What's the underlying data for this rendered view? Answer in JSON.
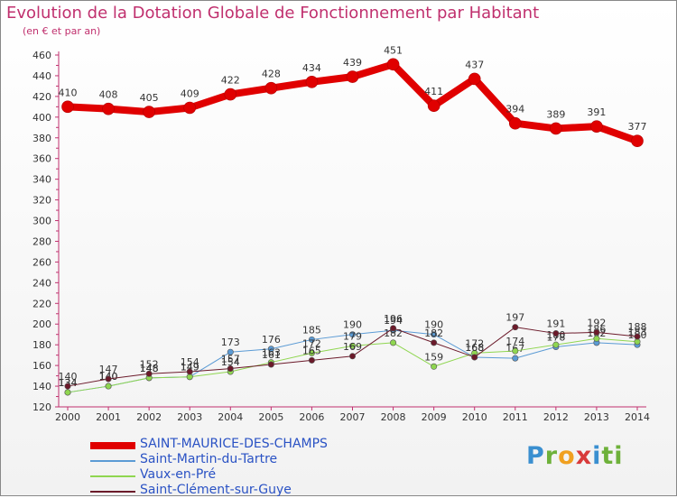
{
  "title": "Evolution de la Dotation Globale de Fonctionnement par Habitant",
  "subtitle": "(en € et par an)",
  "logo": [
    "P",
    "r",
    "o",
    "x",
    "i",
    "ti"
  ],
  "chart_data": {
    "type": "line",
    "x": [
      "2000",
      "2001",
      "2002",
      "2003",
      "2004",
      "2005",
      "2006",
      "2007",
      "2008",
      "2009",
      "2010",
      "2011",
      "2012",
      "2013",
      "2014"
    ],
    "ylim": [
      120,
      460
    ],
    "yticks": [
      120,
      140,
      160,
      180,
      200,
      220,
      240,
      260,
      280,
      300,
      320,
      340,
      360,
      380,
      400,
      420,
      440,
      460
    ],
    "grid": false,
    "legend_position": "bottom-left",
    "series": [
      {
        "name": "SAINT-MAURICE-DES-CHAMPS",
        "color": "#e00000",
        "width": 8,
        "values": [
          410,
          408,
          405,
          409,
          422,
          428,
          434,
          439,
          451,
          411,
          437,
          394,
          389,
          391,
          377
        ]
      },
      {
        "name": "Saint-Martin-du-Tartre",
        "color": "#5b9bd5",
        "width": 1,
        "values": [
          134,
          140,
          148,
          149,
          173,
          176,
          185,
          190,
          194,
          190,
          168,
          167,
          178,
          182,
          180
        ]
      },
      {
        "name": "Vaux-en-Pré",
        "color": "#8fd650",
        "width": 1,
        "values": [
          134,
          140,
          148,
          149,
          154,
          163,
          172,
          179,
          182,
          159,
          172,
          174,
          180,
          186,
          183
        ]
      },
      {
        "name": "Saint-Clément-sur-Guye",
        "color": "#6b1a2a",
        "width": 1,
        "values": [
          140,
          147,
          152,
          154,
          157,
          161,
          165,
          169,
          196,
          182,
          168,
          197,
          191,
          192,
          188
        ]
      }
    ],
    "data_labels": {
      "SAINT-MAURICE-DES-CHAMPS": [
        "410",
        "408",
        "405",
        "409",
        "422",
        "428",
        "434",
        "439",
        "451",
        "411",
        "437",
        "394",
        "389",
        "391",
        "377"
      ],
      "Saint-Martin-du-Tartre": [
        "134",
        "140",
        "148",
        "149",
        "173",
        "176",
        "185",
        "190",
        "194",
        "190",
        "168",
        "167",
        "178",
        "182",
        "180"
      ],
      "Vaux-en-Pré": [
        "134",
        "140",
        "148",
        "149",
        "154",
        "163",
        "172",
        "179",
        "182",
        "159",
        "172",
        "174",
        "180",
        "186",
        "183"
      ],
      "Saint-Clément-sur-Guye": [
        "140",
        "147",
        "152",
        "154",
        "157",
        "161",
        "165",
        "169",
        "196",
        "182",
        "168",
        "197",
        "191",
        "192",
        "188"
      ]
    }
  }
}
